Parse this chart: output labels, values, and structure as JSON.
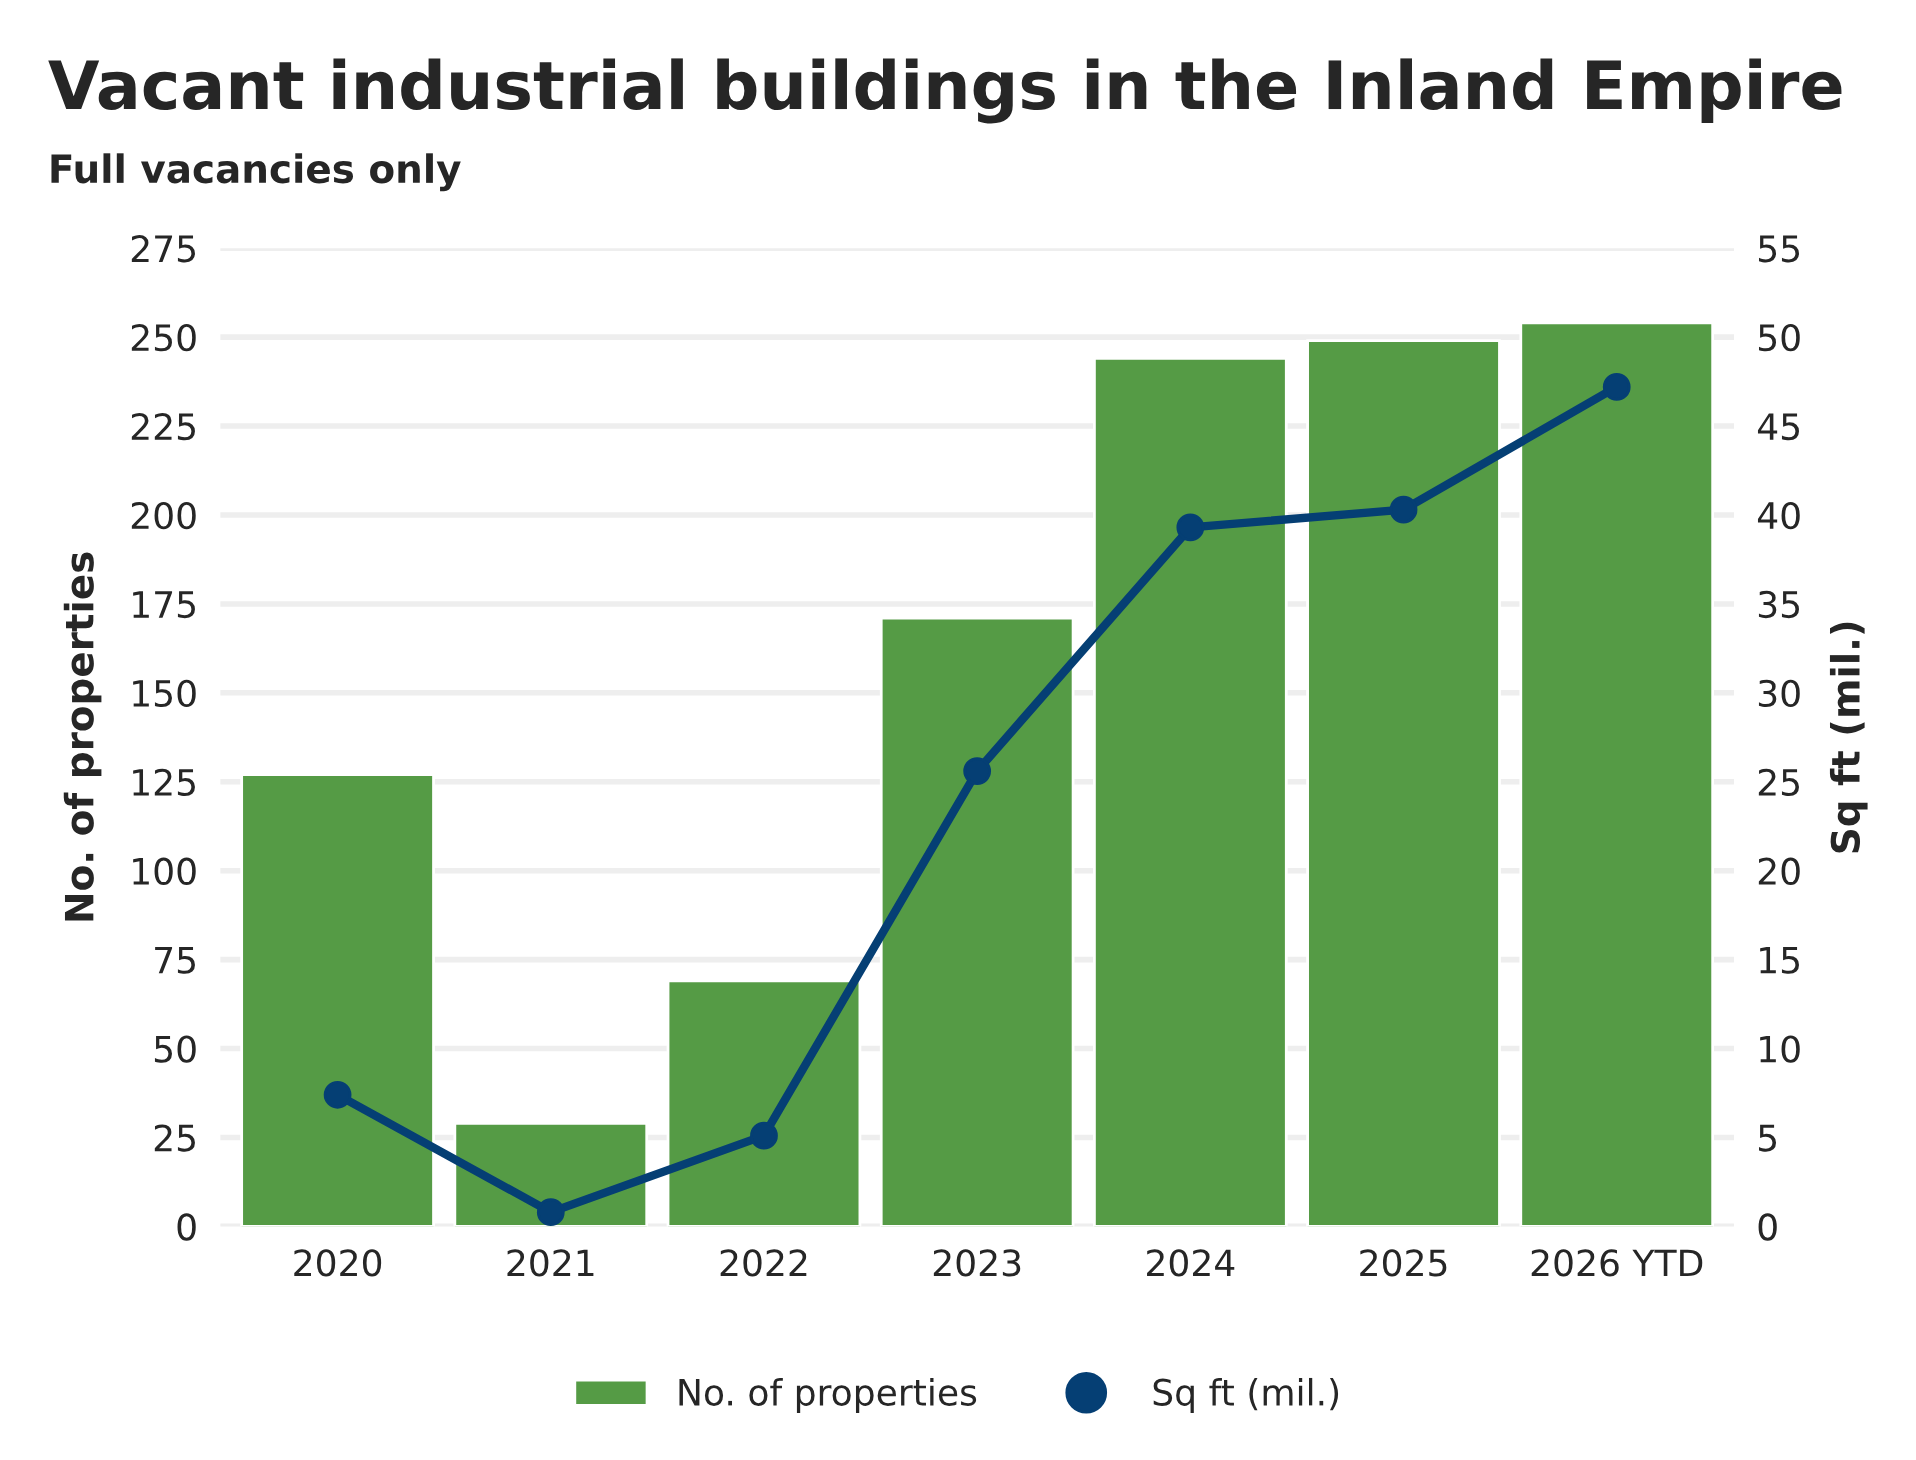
{
  "chart_data": {
    "type": "bar",
    "title": "Vacant industrial buildings in the Inland Empire",
    "subtitle": "Full vacancies only",
    "ylabel": "No. of properties",
    "y2label": "Sq ft (mil.)",
    "categories": [
      "2020",
      "2021",
      "2022",
      "2023",
      "2024",
      "2025",
      "2026 YTD"
    ],
    "series": [
      {
        "name": "No. of properties",
        "color": "#559b45",
        "values": [
          127,
          29,
          69,
          171,
          244,
          249,
          254
        ]
      },
      {
        "name": "Sq ft (mil.)",
        "type": "line",
        "axis": "y2",
        "color": "#053f74",
        "values": [
          7.4,
          0.8,
          5.1,
          25.6,
          39.3,
          40.3,
          47.2
        ]
      }
    ],
    "ylim": [
      0,
      275
    ],
    "yticks": [
      0,
      25,
      50,
      75,
      100,
      125,
      150,
      175,
      200,
      225,
      250,
      275
    ],
    "y2lim": [
      0,
      55
    ],
    "y2ticks": [
      0,
      5,
      10,
      15,
      20,
      25,
      30,
      35,
      40,
      45,
      50,
      55
    ],
    "grid": "y",
    "legend": "bottom",
    "marker": "circle",
    "line_style": "solid"
  }
}
